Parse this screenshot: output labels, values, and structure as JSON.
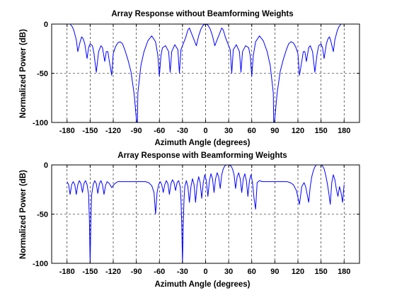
{
  "chart_data": [
    {
      "type": "line",
      "title": "Array Response without Beamforming Weights",
      "xlabel": "Azimuth Angle (degrees)",
      "ylabel": "Normalized Power (dB)",
      "xlim": [
        -200,
        200
      ],
      "ylim": [
        -100,
        0
      ],
      "xticks": [
        -180,
        -150,
        -120,
        -90,
        -60,
        -30,
        0,
        30,
        60,
        90,
        120,
        150,
        180
      ],
      "xtick_labels": [
        "-180",
        "-150",
        "-120",
        "-90",
        "-60",
        "-30",
        "0",
        "30",
        "60",
        "90",
        "120",
        "150",
        "180"
      ],
      "yticks": [
        -100,
        -50,
        0
      ],
      "ytick_labels": [
        "-100",
        "-50",
        "0"
      ],
      "grid": true,
      "line_color": "#0000ff",
      "series": [
        {
          "x": [
            -180,
            -176,
            -173,
            -171,
            -170,
            -168,
            -166,
            -163,
            -161,
            -159,
            -157,
            -154,
            -152,
            -150,
            -147,
            -145,
            -142,
            -139,
            -136,
            -134,
            -131,
            -129,
            -127,
            -125,
            -122,
            -120,
            -117,
            -114,
            -111,
            -108,
            -105,
            -101,
            -97,
            -93,
            -89.5,
            -88.5,
            -88,
            -84,
            -80,
            -75,
            -70,
            -65,
            -62,
            -60,
            -58,
            -56,
            -52,
            -48,
            -46,
            -44,
            -40,
            -36,
            -34,
            -32,
            -29,
            -26,
            -23,
            -21,
            -18,
            -15,
            -12,
            -9,
            -6,
            -3,
            0,
            3,
            6,
            9,
            12,
            15,
            18,
            21,
            23,
            26,
            29,
            32,
            34,
            36,
            40,
            44,
            46,
            48,
            52,
            56,
            58,
            60,
            62,
            65,
            70,
            75,
            80,
            84,
            88,
            88.5,
            89.5,
            93,
            97,
            101,
            105,
            108,
            111,
            114,
            117,
            120,
            122,
            125,
            127,
            129,
            131,
            134,
            136,
            139,
            142,
            145,
            147,
            150,
            152,
            154,
            157,
            159,
            161,
            163,
            166,
            168,
            170,
            171,
            173,
            176,
            180
          ],
          "y": [
            0,
            0,
            -3,
            -7,
            -10,
            -16,
            -28,
            -18,
            -13,
            -15,
            -20,
            -35,
            -24,
            -20,
            -22,
            -30,
            -49,
            -28,
            -22,
            -24,
            -38,
            -28,
            -28,
            -38,
            -52,
            -30,
            -23,
            -19,
            -18,
            -20,
            -26,
            -36,
            -48,
            -70,
            -100,
            -100,
            -70,
            -42,
            -28,
            -17,
            -12,
            -18,
            -32,
            -53,
            -32,
            -24,
            -22,
            -28,
            -49,
            -28,
            -21,
            -26,
            -50,
            -26,
            -20,
            -14,
            -6,
            -4,
            -10,
            -16,
            -22,
            -12,
            -5,
            -1,
            0,
            -1,
            -5,
            -12,
            -22,
            -16,
            -10,
            -4,
            -6,
            -14,
            -20,
            -26,
            -50,
            -26,
            -21,
            -28,
            -49,
            -28,
            -22,
            -24,
            -32,
            -53,
            -32,
            -18,
            -12,
            -17,
            -28,
            -42,
            -70,
            -100,
            -100,
            -70,
            -48,
            -36,
            -26,
            -20,
            -18,
            -19,
            -23,
            -30,
            -52,
            -38,
            -28,
            -28,
            -38,
            -24,
            -22,
            -28,
            -49,
            -30,
            -22,
            -20,
            -24,
            -35,
            -20,
            -15,
            -13,
            -18,
            -28,
            -16,
            -10,
            -7,
            -3,
            0,
            0
          ]
        }
      ]
    },
    {
      "type": "line",
      "title": "Array Response with Beamforming Weights",
      "xlabel": "Azimuth Angle (degrees)",
      "ylabel": "Normalized Power (dB)",
      "xlim": [
        -200,
        200
      ],
      "ylim": [
        -100,
        0
      ],
      "xticks": [
        -180,
        -150,
        -120,
        -90,
        -60,
        -30,
        0,
        30,
        60,
        90,
        120,
        150,
        180
      ],
      "xtick_labels": [
        "-180",
        "-150",
        "-120",
        "-90",
        "-60",
        "-30",
        "0",
        "30",
        "60",
        "90",
        "120",
        "150",
        "180"
      ],
      "yticks": [
        -100,
        -50,
        0
      ],
      "ytick_labels": [
        "-100",
        "-50",
        "0"
      ],
      "grid": true,
      "line_color": "#0000ff",
      "series": [
        {
          "x": [
            -180,
            -178,
            -176,
            -174,
            -172,
            -170,
            -168,
            -166,
            -164,
            -162,
            -160,
            -158,
            -156,
            -154,
            -152,
            -151,
            -150,
            -149,
            -148,
            -146,
            -144,
            -142,
            -140,
            -138,
            -136,
            -134,
            -132,
            -130,
            -128,
            -125,
            -122,
            -118,
            -114,
            -110,
            -106,
            -102,
            -98,
            -94,
            -90,
            -86,
            -82,
            -78,
            -74,
            -70,
            -67,
            -65,
            -63,
            -61,
            -59,
            -57,
            -55,
            -53,
            -51,
            -49,
            -47,
            -45,
            -43,
            -41,
            -39,
            -37,
            -35,
            -33,
            -32,
            -31,
            -30,
            -29,
            -28,
            -27,
            -25,
            -23,
            -21,
            -19,
            -17,
            -15,
            -13,
            -11,
            -9,
            -7,
            -5,
            -3,
            -1,
            1,
            3,
            5,
            7,
            9,
            11,
            13,
            15,
            17,
            19,
            21,
            23,
            25,
            27,
            30,
            33,
            35,
            37,
            39,
            41,
            43,
            45,
            47,
            49,
            51,
            53,
            55,
            57,
            59,
            61,
            63,
            65,
            67,
            70,
            74,
            78,
            82,
            86,
            90,
            94,
            98,
            102,
            106,
            110,
            114,
            118,
            122,
            125,
            128,
            130,
            132,
            134,
            136,
            138,
            140,
            142,
            144,
            146,
            148,
            150,
            152,
            154,
            156,
            158,
            160,
            162,
            164,
            166,
            168,
            170,
            172,
            174,
            176,
            178,
            180
          ],
          "y": [
            -17,
            -20,
            -30,
            -20,
            -17,
            -20,
            -30,
            -20,
            -16,
            -19,
            -28,
            -19,
            -16,
            -20,
            -30,
            -55,
            -100,
            -55,
            -30,
            -20,
            -16,
            -19,
            -29,
            -19,
            -16,
            -20,
            -30,
            -21,
            -17,
            -19,
            -23,
            -19,
            -17,
            -17,
            -17,
            -17,
            -17,
            -17,
            -17,
            -17,
            -17,
            -17,
            -18,
            -21,
            -28,
            -50,
            -28,
            -20,
            -17,
            -20,
            -28,
            -20,
            -16,
            -19,
            -30,
            -19,
            -15,
            -18,
            -26,
            -18,
            -16,
            -22,
            -35,
            -60,
            -100,
            -60,
            -35,
            -22,
            -16,
            -22,
            -38,
            -22,
            -14,
            -20,
            -38,
            -20,
            -12,
            -18,
            -34,
            -18,
            -10,
            -16,
            -32,
            -16,
            -9,
            -14,
            -28,
            -14,
            -8,
            -12,
            -24,
            -10,
            -4,
            -1,
            0,
            0,
            -1,
            -4,
            -10,
            -24,
            -12,
            -8,
            -14,
            -28,
            -14,
            -9,
            -16,
            -32,
            -16,
            -10,
            -18,
            -34,
            -45,
            -18,
            -16,
            -17,
            -17,
            -17,
            -17,
            -17,
            -17,
            -17,
            -17,
            -17,
            -18,
            -20,
            -26,
            -40,
            -22,
            -18,
            -22,
            -30,
            -38,
            -22,
            -12,
            -6,
            -2,
            0,
            0,
            0,
            0,
            -1,
            -4,
            -10,
            -18,
            -28,
            -40,
            -18,
            -10,
            -15,
            -25,
            -32,
            -22,
            -28,
            -38,
            -20
          ]
        }
      ]
    }
  ]
}
